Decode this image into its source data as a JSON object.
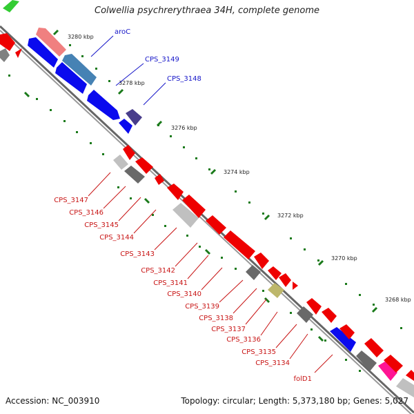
{
  "title": "Colwellia psychrerythraea 34H, complete genome",
  "footer": {
    "accession": "Accession: NC_003910",
    "summary": "Topology: circular; Length: 5,373,180 bp; Genes: 5,027"
  },
  "colors": {
    "forward_gene": "#0a0aee",
    "reverse_gene": "#ee0000",
    "forward_label": "#1414c8",
    "reverse_label": "#c81414",
    "tick": "#1a7a1a",
    "backbone": "#777777"
  },
  "scale": {
    "ticks": [
      "3280 kbp",
      "3278 kbp",
      "3276 kbp",
      "3274 kbp",
      "3272 kbp",
      "3270 kbp",
      "3268 kbp"
    ]
  },
  "forward_labels": [
    "aroC",
    "CPS_3149",
    "CPS_3148"
  ],
  "reverse_labels": [
    "CPS_3147",
    "CPS_3146",
    "CPS_3145",
    "CPS_3144",
    "CPS_3143",
    "CPS_3142",
    "CPS_3141",
    "CPS_3140",
    "CPS_3139",
    "CPS_3138",
    "CPS_3137",
    "CPS_3136",
    "CPS_3135",
    "CPS_3134",
    "folD1"
  ]
}
